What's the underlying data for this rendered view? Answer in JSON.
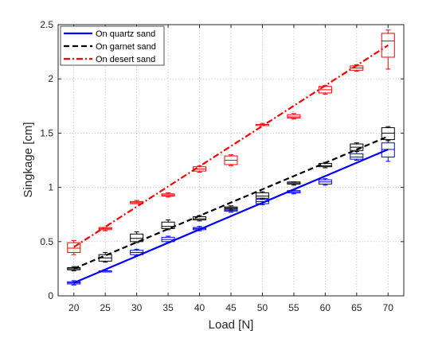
{
  "chart_data": {
    "type": "line",
    "title": "",
    "xlabel": "Load [N]",
    "ylabel": "Singkage [cm]",
    "xlim": [
      17.5,
      72.5
    ],
    "ylim": [
      0,
      2.5
    ],
    "x": [
      20,
      25,
      30,
      35,
      40,
      45,
      50,
      55,
      60,
      65,
      70
    ],
    "xticks": [
      "20",
      "25",
      "30",
      "35",
      "40",
      "45",
      "50",
      "55",
      "60",
      "65",
      "70"
    ],
    "yticks": [
      "0",
      "0.5",
      "1",
      "1.5",
      "2",
      "2.5"
    ],
    "grid": true,
    "legend_position": "top-left",
    "series": [
      {
        "name": "On quartz sand",
        "color": "#0000ff",
        "line_style": "solid",
        "fit": [
          0.12,
          1.35
        ],
        "boxes": [
          {
            "q1": 0.11,
            "median": 0.12,
            "q3": 0.13,
            "min": 0.1,
            "max": 0.14
          },
          {
            "q1": 0.22,
            "median": 0.23,
            "q3": 0.23,
            "min": 0.22,
            "max": 0.24
          },
          {
            "q1": 0.38,
            "median": 0.4,
            "q3": 0.42,
            "min": 0.37,
            "max": 0.43
          },
          {
            "q1": 0.5,
            "median": 0.52,
            "q3": 0.54,
            "min": 0.49,
            "max": 0.55
          },
          {
            "q1": 0.61,
            "median": 0.62,
            "q3": 0.63,
            "min": 0.6,
            "max": 0.64
          },
          {
            "q1": 0.78,
            "median": 0.79,
            "q3": 0.8,
            "min": 0.77,
            "max": 0.81
          },
          {
            "q1": 0.85,
            "median": 0.87,
            "q3": 0.89,
            "min": 0.84,
            "max": 0.9
          },
          {
            "q1": 0.95,
            "median": 0.96,
            "q3": 0.97,
            "min": 0.94,
            "max": 0.98
          },
          {
            "q1": 1.03,
            "median": 1.05,
            "q3": 1.07,
            "min": 1.02,
            "max": 1.08
          },
          {
            "q1": 1.26,
            "median": 1.28,
            "q3": 1.31,
            "min": 1.25,
            "max": 1.33
          },
          {
            "q1": 1.28,
            "median": 1.35,
            "q3": 1.41,
            "min": 1.24,
            "max": 1.44
          }
        ]
      },
      {
        "name": "On garnet sand",
        "color": "#000000",
        "line_style": "dashed",
        "fit": [
          0.25,
          1.47
        ],
        "boxes": [
          {
            "q1": 0.24,
            "median": 0.25,
            "q3": 0.26,
            "min": 0.23,
            "max": 0.27
          },
          {
            "q1": 0.32,
            "median": 0.35,
            "q3": 0.38,
            "min": 0.31,
            "max": 0.4
          },
          {
            "q1": 0.5,
            "median": 0.53,
            "q3": 0.57,
            "min": 0.49,
            "max": 0.59
          },
          {
            "q1": 0.62,
            "median": 0.64,
            "q3": 0.68,
            "min": 0.61,
            "max": 0.7
          },
          {
            "q1": 0.7,
            "median": 0.71,
            "q3": 0.73,
            "min": 0.69,
            "max": 0.74
          },
          {
            "q1": 0.8,
            "median": 0.81,
            "q3": 0.82,
            "min": 0.79,
            "max": 0.83
          },
          {
            "q1": 0.9,
            "median": 0.92,
            "q3": 0.95,
            "min": 0.89,
            "max": 0.96
          },
          {
            "q1": 1.03,
            "median": 1.04,
            "q3": 1.05,
            "min": 1.02,
            "max": 1.05
          },
          {
            "q1": 1.19,
            "median": 1.2,
            "q3": 1.22,
            "min": 1.18,
            "max": 1.23
          },
          {
            "q1": 1.34,
            "median": 1.37,
            "q3": 1.4,
            "min": 1.33,
            "max": 1.41
          },
          {
            "q1": 1.44,
            "median": 1.5,
            "q3": 1.55,
            "min": 1.43,
            "max": 1.56
          }
        ]
      },
      {
        "name": "On desert sand",
        "color": "#ff0000",
        "line_style": "dash-dot",
        "fit": [
          0.45,
          2.31
        ],
        "boxes": [
          {
            "q1": 0.4,
            "median": 0.44,
            "q3": 0.49,
            "min": 0.38,
            "max": 0.51
          },
          {
            "q1": 0.61,
            "median": 0.62,
            "q3": 0.63,
            "min": 0.6,
            "max": 0.63
          },
          {
            "q1": 0.85,
            "median": 0.86,
            "q3": 0.87,
            "min": 0.85,
            "max": 0.88
          },
          {
            "q1": 0.92,
            "median": 0.93,
            "q3": 0.94,
            "min": 0.91,
            "max": 0.95
          },
          {
            "q1": 1.15,
            "median": 1.17,
            "q3": 1.19,
            "min": 1.14,
            "max": 1.2
          },
          {
            "q1": 1.21,
            "median": 1.25,
            "q3": 1.29,
            "min": 1.2,
            "max": 1.3
          },
          {
            "q1": 1.57,
            "median": 1.58,
            "q3": 1.58,
            "min": 1.57,
            "max": 1.59
          },
          {
            "q1": 1.64,
            "median": 1.65,
            "q3": 1.67,
            "min": 1.63,
            "max": 1.68
          },
          {
            "q1": 1.87,
            "median": 1.9,
            "q3": 1.93,
            "min": 1.86,
            "max": 1.94
          },
          {
            "q1": 2.08,
            "median": 2.1,
            "q3": 2.12,
            "min": 2.07,
            "max": 2.13
          },
          {
            "q1": 2.2,
            "median": 2.35,
            "q3": 2.42,
            "min": 2.09,
            "max": 2.45
          }
        ]
      }
    ]
  }
}
